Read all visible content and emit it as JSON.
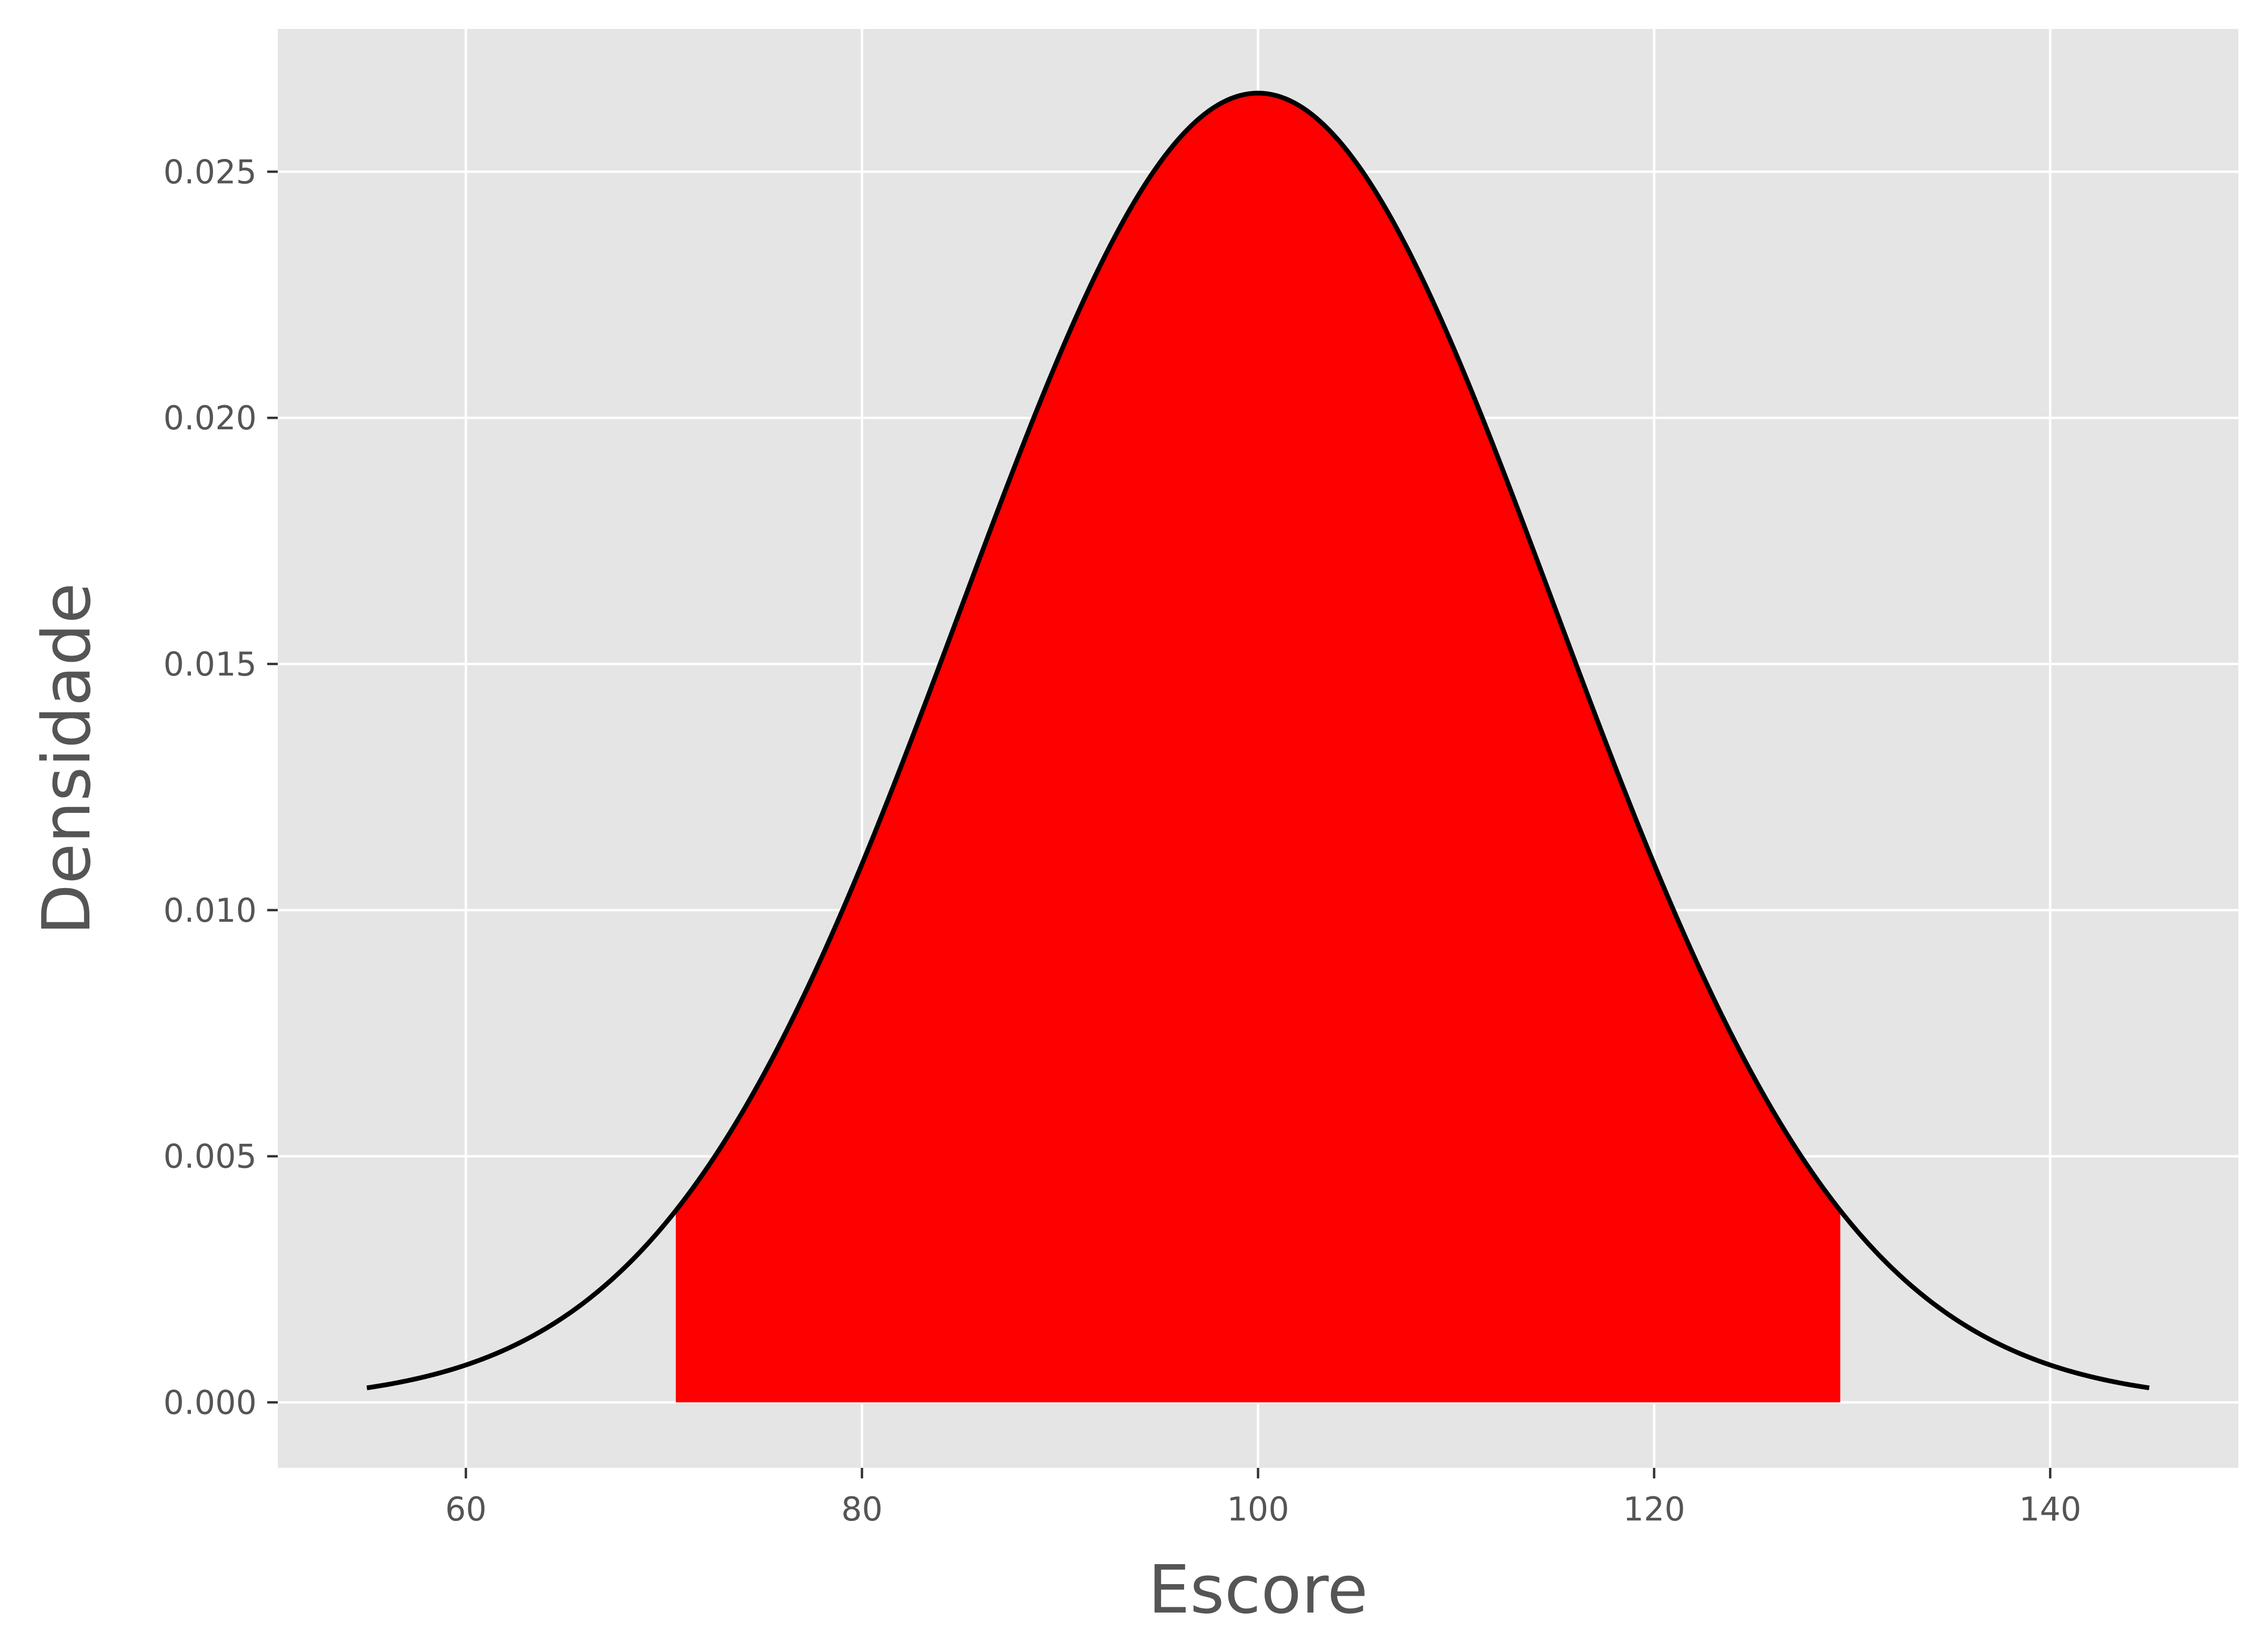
{
  "chart_data": {
    "type": "area",
    "title": "",
    "xlabel": "Escore",
    "ylabel": "Densidade",
    "xlim": [
      50.5,
      149.5
    ],
    "ylim": [
      -0.00133,
      0.0279
    ],
    "x_ticks": [
      60,
      80,
      100,
      120,
      140
    ],
    "x_tick_labels": [
      "60",
      "80",
      "100",
      "120",
      "140"
    ],
    "y_ticks": [
      0.0,
      0.005,
      0.01,
      0.015,
      0.02,
      0.025
    ],
    "y_tick_labels": [
      "0.000",
      "0.005",
      "0.010",
      "0.015",
      "0.020",
      "0.025"
    ],
    "grid": true,
    "series": [
      {
        "kind": "line",
        "distribution": "normal",
        "mean": 100,
        "sd": 15,
        "x_range": [
          55,
          145
        ],
        "peak_density": 0.0266,
        "color": "#000000"
      },
      {
        "kind": "shaded_area",
        "x_range": [
          70.6,
          129.4
        ],
        "color": "#ff0000"
      }
    ],
    "colors": {
      "panel_background": "#e5e5e5",
      "grid": "#ffffff",
      "fill": "#ff0000",
      "curve": "#000000",
      "text": "#555555"
    }
  }
}
